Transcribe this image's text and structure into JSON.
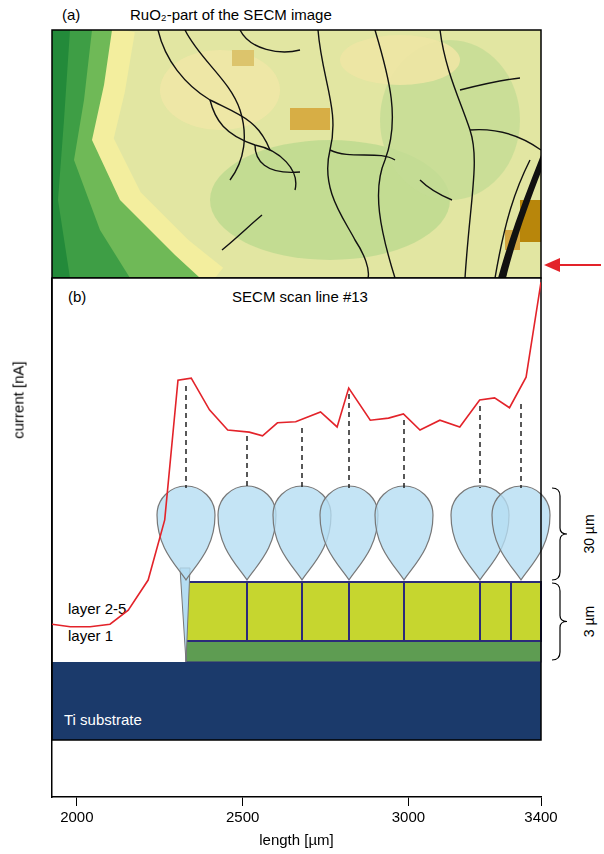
{
  "panel_a": {
    "letter": "(a)",
    "title": "RuO₂-part of the SECM image"
  },
  "panel_b": {
    "letter": "(b)",
    "title": "SECM scan line #13",
    "labels": {
      "layers_top": "layer 2-5",
      "layer_bottom": "layer 1",
      "substrate": "Ti substrate"
    },
    "scale_bars": [
      "30 µm",
      "3 µm"
    ]
  },
  "chart_data": {
    "type": "line",
    "x_label": "length [µm]",
    "y_label": "current [nA]",
    "x": [
      1925,
      1980,
      2040,
      2100,
      2155,
      2215,
      2265,
      2305,
      2345,
      2400,
      2455,
      2520,
      2560,
      2605,
      2660,
      2735,
      2785,
      2820,
      2885,
      2940,
      2985,
      3035,
      3095,
      3155,
      3215,
      3260,
      3305,
      3355,
      3400
    ],
    "values": [
      33.3,
      32.8,
      32.8,
      33.3,
      36.0,
      41.8,
      53.4,
      80.3,
      80.7,
      74.6,
      70.7,
      70.3,
      69.6,
      72.1,
      72.3,
      74.2,
      71.3,
      78.8,
      72.6,
      73.0,
      73.8,
      70.7,
      72.6,
      71.3,
      76.5,
      76.9,
      75.0,
      80.9,
      99.2
    ],
    "color": "#e3232a",
    "xlim": [
      1925,
      3400
    ],
    "xticks": [
      2000,
      2500,
      3000,
      3400
    ],
    "ylim": [
      0,
      100
    ],
    "tick_labels": "x",
    "grid": false
  }
}
